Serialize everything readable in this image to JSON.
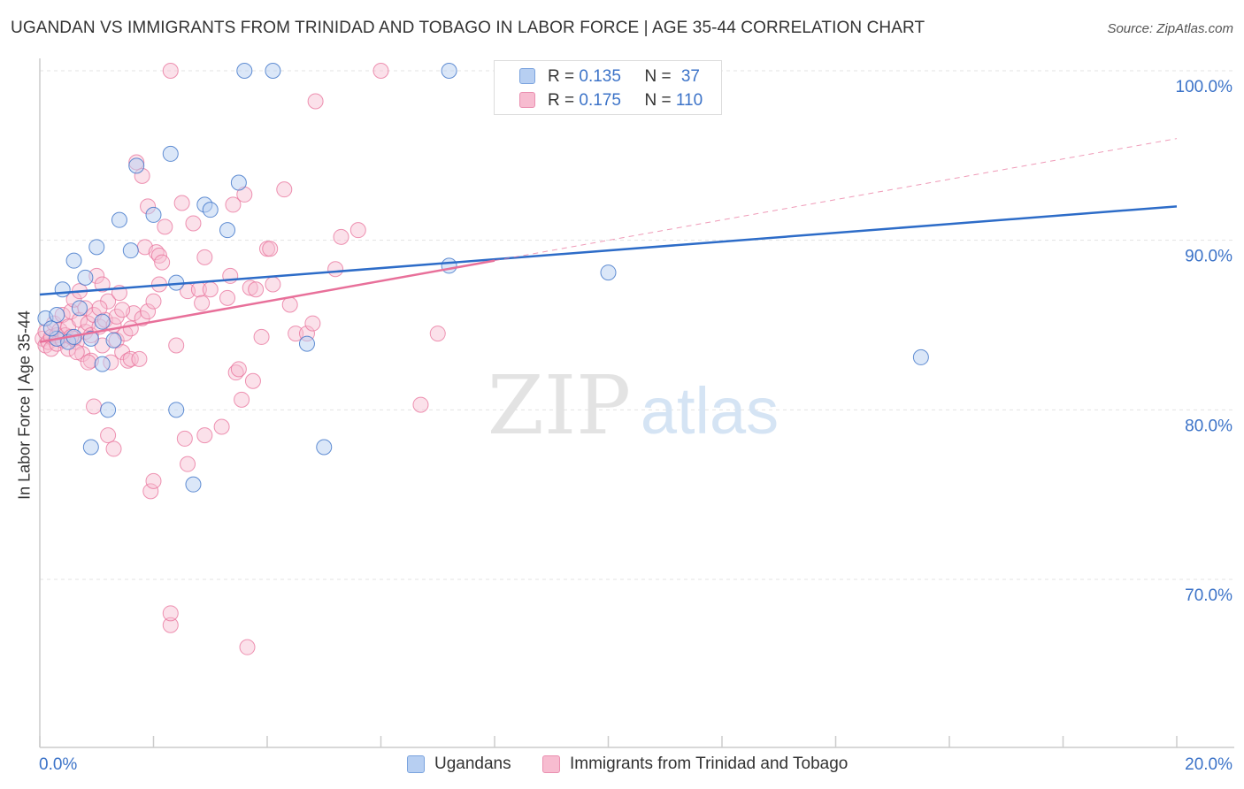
{
  "title": "UGANDAN VS IMMIGRANTS FROM TRINIDAD AND TOBAGO IN LABOR FORCE | AGE 35-44 CORRELATION CHART",
  "source": "Source: ZipAtlas.com",
  "watermark": {
    "zip": "ZIP",
    "atlas": "atlas"
  },
  "colors": {
    "blue": "#3c73c8",
    "blue_fill": "#b7cff2",
    "blue_line": "#2d6cc8",
    "pink": "#e8709a",
    "pink_fill": "#f7bcd0",
    "pink_line": "#e8709a",
    "grid": "#e3e3e3",
    "tick_label": "#3c73c8"
  },
  "legend": {
    "items": [
      {
        "r_label": "R = ",
        "r_value": "0.135",
        "n_label": "N = ",
        "n_value": "37"
      },
      {
        "r_label": "R = ",
        "r_value": "0.175",
        "n_label": "N = ",
        "n_value": "110"
      }
    ]
  },
  "bottom_legend": {
    "series1": "Ugandans",
    "series2": "Immigrants from Trinidad and Tobago"
  },
  "chart_data": {
    "type": "scatter",
    "title": "UGANDAN VS IMMIGRANTS FROM TRINIDAD AND TOBAGO IN LABOR FORCE | AGE 35-44 CORRELATION CHART",
    "xlabel": "",
    "ylabel": "In Labor Force | Age 35-44",
    "xlim": [
      0,
      20
    ],
    "ylim": [
      60,
      101.5
    ],
    "x_tick_labels": [
      "0.0%",
      "20.0%"
    ],
    "y_ticks": [
      70,
      80,
      90,
      100
    ],
    "y_tick_labels": [
      "70.0%",
      "80.0%",
      "90.0%",
      "100.0%"
    ],
    "grid": true,
    "series": [
      {
        "name": "Ugandans",
        "R": 0.135,
        "N": 37,
        "trend": {
          "x": [
            0,
            20
          ],
          "y": [
            86.8,
            92.0
          ],
          "dashed_x": null
        },
        "points": [
          [
            0.1,
            85.4
          ],
          [
            0.3,
            84.2
          ],
          [
            0.3,
            85.6
          ],
          [
            0.4,
            87.1
          ],
          [
            0.5,
            84.0
          ],
          [
            0.6,
            84.3
          ],
          [
            0.6,
            88.8
          ],
          [
            0.7,
            86.0
          ],
          [
            0.8,
            87.8
          ],
          [
            0.9,
            84.2
          ],
          [
            0.9,
            77.8
          ],
          [
            1.0,
            89.6
          ],
          [
            1.1,
            82.7
          ],
          [
            1.1,
            85.2
          ],
          [
            1.2,
            80.0
          ],
          [
            1.3,
            84.1
          ],
          [
            1.4,
            91.2
          ],
          [
            1.6,
            89.4
          ],
          [
            1.7,
            94.4
          ],
          [
            2.0,
            91.5
          ],
          [
            2.3,
            95.1
          ],
          [
            2.4,
            87.5
          ],
          [
            2.4,
            80.0
          ],
          [
            2.7,
            75.6
          ],
          [
            2.9,
            92.1
          ],
          [
            3.0,
            91.8
          ],
          [
            3.3,
            90.6
          ],
          [
            3.5,
            93.4
          ],
          [
            3.6,
            100.0
          ],
          [
            4.1,
            100.0
          ],
          [
            4.7,
            83.9
          ],
          [
            5.0,
            77.8
          ],
          [
            7.2,
            100.0
          ],
          [
            7.2,
            88.5
          ],
          [
            10.0,
            88.1
          ],
          [
            15.5,
            83.1
          ],
          [
            0.2,
            84.8
          ]
        ]
      },
      {
        "name": "Immigrants from Trinidad and Tobago",
        "R": 0.175,
        "N": 110,
        "trend": {
          "x": [
            0,
            20
          ],
          "y": [
            84.0,
            96.0
          ],
          "solid_until_x": 8.0
        },
        "points": [
          [
            0.05,
            84.2
          ],
          [
            0.1,
            83.8
          ],
          [
            0.1,
            84.6
          ],
          [
            0.15,
            84.0
          ],
          [
            0.2,
            84.3
          ],
          [
            0.2,
            83.6
          ],
          [
            0.25,
            85.1
          ],
          [
            0.3,
            84.4
          ],
          [
            0.3,
            83.9
          ],
          [
            0.35,
            84.7
          ],
          [
            0.4,
            84.1
          ],
          [
            0.4,
            85.6
          ],
          [
            0.45,
            84.4
          ],
          [
            0.5,
            83.6
          ],
          [
            0.5,
            84.9
          ],
          [
            0.55,
            85.8
          ],
          [
            0.6,
            84.2
          ],
          [
            0.6,
            86.5
          ],
          [
            0.65,
            84.0
          ],
          [
            0.7,
            85.3
          ],
          [
            0.7,
            87.0
          ],
          [
            0.75,
            83.3
          ],
          [
            0.8,
            84.6
          ],
          [
            0.8,
            86.0
          ],
          [
            0.85,
            85.1
          ],
          [
            0.9,
            82.9
          ],
          [
            0.9,
            84.4
          ],
          [
            0.95,
            85.6
          ],
          [
            0.95,
            80.2
          ],
          [
            1.0,
            87.9
          ],
          [
            1.05,
            84.9
          ],
          [
            1.1,
            87.4
          ],
          [
            1.1,
            83.8
          ],
          [
            1.15,
            85.3
          ],
          [
            1.2,
            86.4
          ],
          [
            1.2,
            78.5
          ],
          [
            1.25,
            82.8
          ],
          [
            1.3,
            77.7
          ],
          [
            1.3,
            85.0
          ],
          [
            1.35,
            84.1
          ],
          [
            1.4,
            86.9
          ],
          [
            1.45,
            83.4
          ],
          [
            1.5,
            84.5
          ],
          [
            1.55,
            82.9
          ],
          [
            1.6,
            84.8
          ],
          [
            1.6,
            83.0
          ],
          [
            1.65,
            85.7
          ],
          [
            1.7,
            94.6
          ],
          [
            1.75,
            83.0
          ],
          [
            1.8,
            93.8
          ],
          [
            1.8,
            85.4
          ],
          [
            1.85,
            89.6
          ],
          [
            1.9,
            85.8
          ],
          [
            1.9,
            92.0
          ],
          [
            1.95,
            75.2
          ],
          [
            2.0,
            86.4
          ],
          [
            2.0,
            75.8
          ],
          [
            2.05,
            89.3
          ],
          [
            2.1,
            87.4
          ],
          [
            2.1,
            89.1
          ],
          [
            2.15,
            88.7
          ],
          [
            2.2,
            90.8
          ],
          [
            2.3,
            67.3
          ],
          [
            2.3,
            68.0
          ],
          [
            2.4,
            83.8
          ],
          [
            2.5,
            92.2
          ],
          [
            2.55,
            78.3
          ],
          [
            2.6,
            87.0
          ],
          [
            2.6,
            76.8
          ],
          [
            2.7,
            91.0
          ],
          [
            2.8,
            87.1
          ],
          [
            2.85,
            86.3
          ],
          [
            2.9,
            89.0
          ],
          [
            2.9,
            78.5
          ],
          [
            3.0,
            87.1
          ],
          [
            3.2,
            79.0
          ],
          [
            3.3,
            86.6
          ],
          [
            3.35,
            87.9
          ],
          [
            3.4,
            92.1
          ],
          [
            3.45,
            82.2
          ],
          [
            3.5,
            82.4
          ],
          [
            3.55,
            80.6
          ],
          [
            3.6,
            92.7
          ],
          [
            3.65,
            66.0
          ],
          [
            3.7,
            87.2
          ],
          [
            3.75,
            81.7
          ],
          [
            3.8,
            87.1
          ],
          [
            3.9,
            84.3
          ],
          [
            4.0,
            89.5
          ],
          [
            4.05,
            89.5
          ],
          [
            4.1,
            87.4
          ],
          [
            4.3,
            93.0
          ],
          [
            4.4,
            86.2
          ],
          [
            4.5,
            84.5
          ],
          [
            4.7,
            84.5
          ],
          [
            4.8,
            85.1
          ],
          [
            4.85,
            98.2
          ],
          [
            5.2,
            88.3
          ],
          [
            5.3,
            90.2
          ],
          [
            5.6,
            90.6
          ],
          [
            6.0,
            100.0
          ],
          [
            6.7,
            80.3
          ],
          [
            7.0,
            84.5
          ],
          [
            2.3,
            100.0
          ],
          [
            1.05,
            86.0
          ],
          [
            0.55,
            84.3
          ],
          [
            0.65,
            83.4
          ],
          [
            1.35,
            85.5
          ],
          [
            0.85,
            82.8
          ],
          [
            1.45,
            85.9
          ]
        ]
      }
    ]
  }
}
